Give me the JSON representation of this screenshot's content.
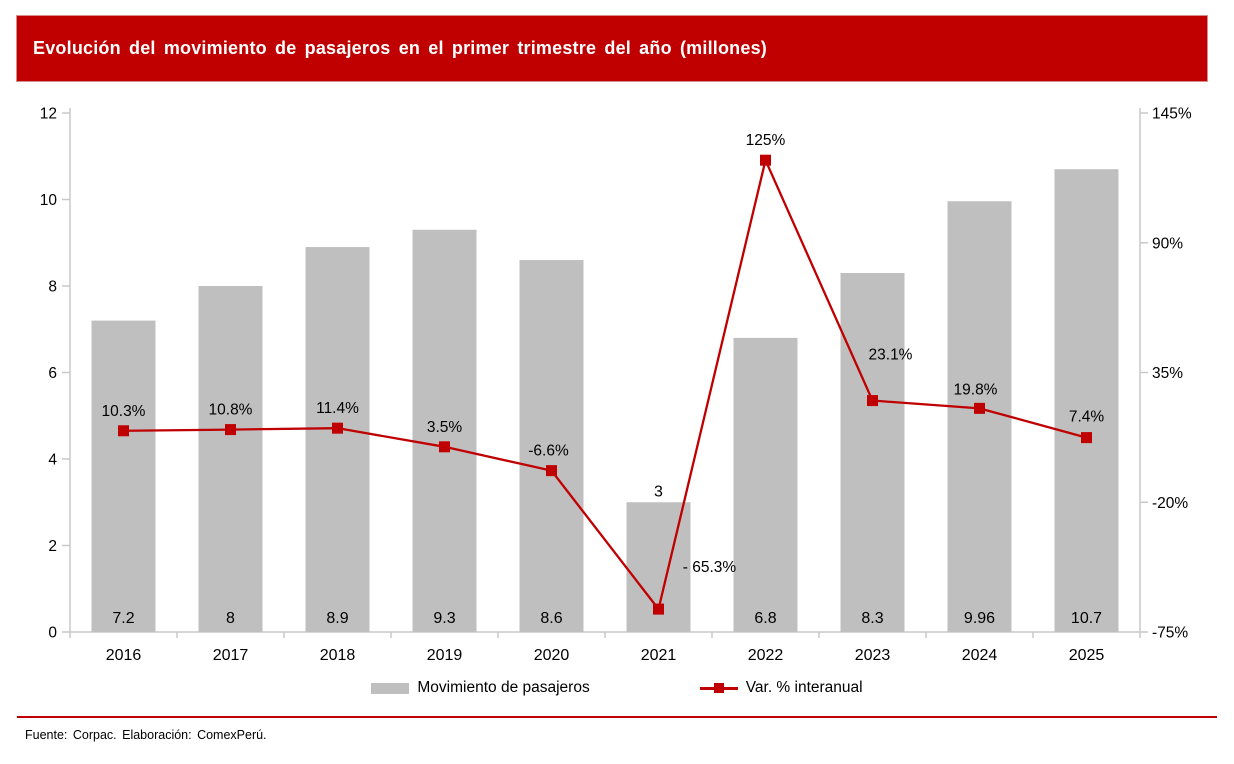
{
  "title": "Evolución del movimiento de pasajeros en el primer trimestre del año (millones)",
  "footer": {
    "source_line": "Fuente: Corpac. Elaboración: ComexPerú."
  },
  "colors": {
    "accent_red": "#C00000",
    "bar_gray": "#BFBFBF",
    "axis_gray": "#C9C9C9",
    "title_text": "#FFFFFF",
    "label_black": "#000000"
  },
  "legend": [
    {
      "label": "Movimiento de pasajeros",
      "swatch": "gray-bar"
    },
    {
      "label": "Var. % interanual",
      "swatch": "red-line-with-square-marker"
    }
  ],
  "chart_data": {
    "type": "combo-bar-line",
    "title": "Evolución del movimiento de pasajeros en el primer trimestre del año (millones)",
    "categories": [
      "2016",
      "2017",
      "2018",
      "2019",
      "2020",
      "2021",
      "2022",
      "2023",
      "2024",
      "2025"
    ],
    "series": [
      {
        "name": "Movimiento de pasajeros",
        "type": "bar",
        "axis": "left",
        "color": "#BFBFBF",
        "values": [
          7.2,
          8,
          8.9,
          9.3,
          8.6,
          3,
          6.8,
          8.3,
          9.96,
          10.7
        ],
        "value_labels": [
          "7.2",
          "8",
          "8.9",
          "9.3",
          "8.6",
          "3",
          "6.8",
          "8.3",
          "9.96",
          "10.7"
        ],
        "value_label_position": [
          "inside-bottom",
          "inside-bottom",
          "inside-bottom",
          "inside-bottom",
          "inside-bottom",
          "above-top",
          "inside-bottom",
          "inside-bottom",
          "inside-bottom",
          "inside-bottom"
        ]
      },
      {
        "name": "Var. % interanual",
        "type": "line",
        "axis": "right",
        "color": "#C00000",
        "marker": "square",
        "values": [
          10.3,
          10.8,
          11.4,
          3.5,
          -6.6,
          -65.3,
          125,
          23.1,
          19.8,
          7.4
        ],
        "point_labels": [
          "10.3%",
          "10.8%",
          "11.4%",
          "3.5%",
          "-6.6%",
          "- 65.3%",
          "125%",
          "23.1%",
          "19.8%",
          "7.4%"
        ],
        "point_label_offsets": [
          [
            0,
            -15
          ],
          [
            0,
            -15
          ],
          [
            0,
            -15
          ],
          [
            0,
            -15
          ],
          [
            -3,
            -15
          ],
          [
            51,
            -37
          ],
          [
            0,
            -15
          ],
          [
            18,
            -41
          ],
          [
            -4,
            -14
          ],
          [
            0,
            -16
          ]
        ]
      }
    ],
    "left_axis": {
      "min": 0,
      "max": 12,
      "tick_values": [
        0,
        2,
        4,
        6,
        8,
        10,
        12
      ],
      "tick_labels": [
        "0",
        "2",
        "4",
        "6",
        "8",
        "10",
        "12"
      ]
    },
    "right_axis": {
      "min": -75,
      "max": 145,
      "tick_values": [
        145,
        90,
        35,
        -20,
        -75
      ],
      "tick_labels": [
        "145%",
        "90%",
        "35%",
        "-20%",
        "-75%"
      ]
    },
    "grid": false,
    "legend_position": "bottom"
  }
}
